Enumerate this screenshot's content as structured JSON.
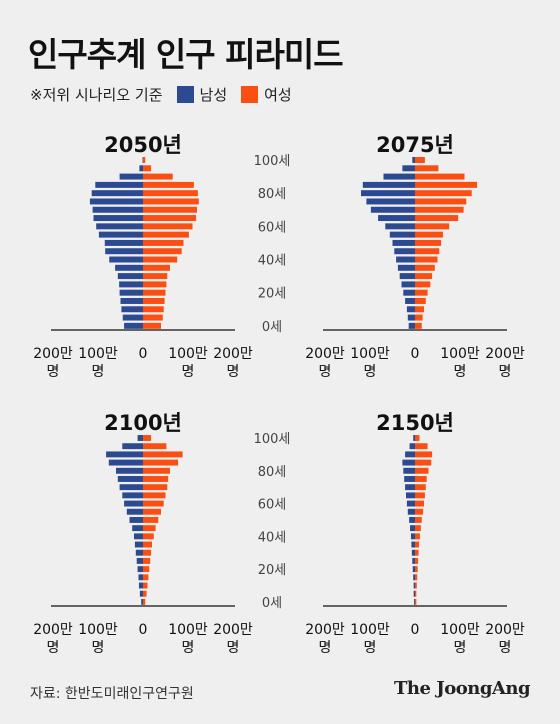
{
  "title": "인구추계 인구 피라미드",
  "note": "※저위 시나리오 기준",
  "legend": {
    "male": {
      "label": "남성",
      "color": "#2c4a91"
    },
    "female": {
      "label": "여성",
      "color": "#fb4e12"
    }
  },
  "source": "자료: 한반도미래인구연구원",
  "brand": "The JoongAng",
  "chart_data": [
    {
      "type": "bar",
      "title": "2050년",
      "orientation": "horizontal-pyramid",
      "categories": [
        "0",
        "5",
        "10",
        "15",
        "20",
        "25",
        "30",
        "35",
        "40",
        "45",
        "50",
        "55",
        "60",
        "65",
        "70",
        "75",
        "80",
        "85",
        "90",
        "95",
        "100"
      ],
      "y_axis_label": "",
      "y_ticks": [
        "0세",
        "20세",
        "40세",
        "60세",
        "80세",
        "100세"
      ],
      "x_ticks": [
        "200만 명",
        "100만 명",
        "0",
        "100만 명",
        "200만 명"
      ],
      "xlim": [
        -200,
        200
      ],
      "unit": "만 명",
      "series": [
        {
          "name": "남성",
          "values": [
            42,
            45,
            48,
            50,
            52,
            53,
            56,
            62,
            75,
            84,
            85,
            98,
            104,
            110,
            112,
            118,
            114,
            106,
            52,
            8,
            1
          ]
        },
        {
          "name": "여성",
          "values": [
            40,
            44,
            46,
            48,
            50,
            52,
            54,
            60,
            76,
            86,
            90,
            102,
            110,
            118,
            120,
            124,
            122,
            113,
            66,
            18,
            5
          ]
        }
      ]
    },
    {
      "type": "bar",
      "title": "2075년",
      "orientation": "horizontal-pyramid",
      "categories": [
        "0",
        "5",
        "10",
        "15",
        "20",
        "25",
        "30",
        "35",
        "40",
        "45",
        "50",
        "55",
        "60",
        "65",
        "70",
        "75",
        "80",
        "85",
        "90",
        "95",
        "100"
      ],
      "y_ticks": [
        "0세",
        "20세",
        "40세",
        "60세",
        "80세",
        "100세"
      ],
      "x_ticks": [
        "200만 명",
        "100만 명",
        "0",
        "100만 명",
        "200만 명"
      ],
      "xlim": [
        -200,
        200
      ],
      "unit": "만 명",
      "series": [
        {
          "name": "남성",
          "values": [
            14,
            16,
            18,
            22,
            26,
            30,
            34,
            38,
            42,
            46,
            50,
            56,
            66,
            82,
            98,
            108,
            120,
            116,
            70,
            28,
            6
          ]
        },
        {
          "name": "여성",
          "values": [
            15,
            17,
            20,
            24,
            28,
            34,
            38,
            44,
            50,
            54,
            58,
            62,
            76,
            96,
            108,
            114,
            126,
            138,
            110,
            52,
            22
          ]
        }
      ]
    },
    {
      "type": "bar",
      "title": "2100년",
      "orientation": "horizontal-pyramid",
      "categories": [
        "0",
        "5",
        "10",
        "15",
        "20",
        "25",
        "30",
        "35",
        "40",
        "45",
        "50",
        "55",
        "60",
        "65",
        "70",
        "75",
        "80",
        "85",
        "90",
        "95",
        "100"
      ],
      "y_ticks": [
        "0세",
        "20세",
        "40세",
        "60세",
        "80세",
        "100세"
      ],
      "x_ticks": [
        "200만 명",
        "100만 명",
        "0",
        "100만 명",
        "200만 명"
      ],
      "xlim": [
        -200,
        200
      ],
      "unit": "만 명",
      "series": [
        {
          "name": "남성",
          "values": [
            4,
            7,
            9,
            10,
            12,
            14,
            16,
            18,
            20,
            24,
            30,
            36,
            42,
            46,
            52,
            56,
            60,
            76,
            82,
            46,
            12
          ]
        },
        {
          "name": "여성",
          "values": [
            5,
            8,
            10,
            12,
            14,
            16,
            18,
            20,
            24,
            28,
            34,
            40,
            46,
            50,
            54,
            56,
            60,
            78,
            88,
            52,
            18
          ]
        }
      ]
    },
    {
      "type": "bar",
      "title": "2150년",
      "orientation": "horizontal-pyramid",
      "categories": [
        "0",
        "5",
        "10",
        "15",
        "20",
        "25",
        "30",
        "35",
        "40",
        "45",
        "50",
        "55",
        "60",
        "65",
        "70",
        "75",
        "80",
        "85",
        "90",
        "95",
        "100"
      ],
      "y_ticks": [
        "0세",
        "20세",
        "40세",
        "60세",
        "80세",
        "100세"
      ],
      "x_ticks": [
        "200만 명",
        "100만 명",
        "0",
        "100만 명",
        "200만 명"
      ],
      "xlim": [
        -200,
        200
      ],
      "unit": "만 명",
      "series": [
        {
          "name": "남성",
          "values": [
            2,
            3,
            3,
            4,
            5,
            6,
            7,
            8,
            9,
            11,
            13,
            16,
            18,
            20,
            22,
            24,
            26,
            28,
            22,
            12,
            4
          ]
        },
        {
          "name": "여성",
          "values": [
            3,
            3,
            4,
            5,
            6,
            7,
            8,
            9,
            11,
            13,
            15,
            18,
            20,
            22,
            24,
            26,
            30,
            36,
            38,
            28,
            10
          ]
        }
      ]
    }
  ]
}
